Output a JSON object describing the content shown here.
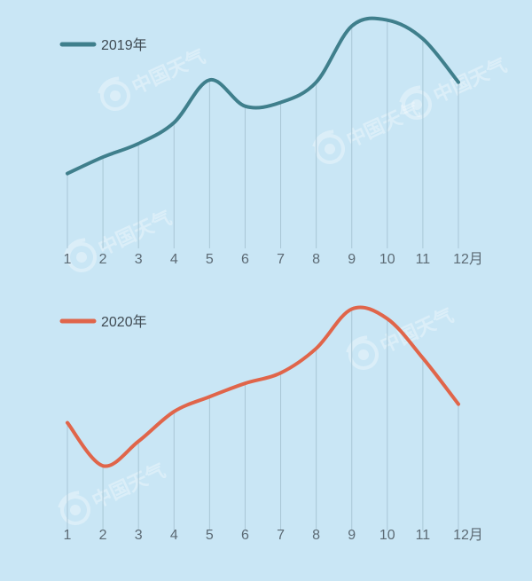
{
  "chart_data": [
    {
      "type": "line",
      "categories": [
        "1",
        "2",
        "3",
        "4",
        "5",
        "6",
        "7",
        "8",
        "9",
        "10",
        "11",
        "12月"
      ],
      "series": [
        {
          "name": "2019年",
          "color": "#3f7f8c",
          "values": [
            100,
            122,
            140,
            168,
            225,
            190,
            195,
            222,
            297,
            305,
            280,
            222
          ]
        }
      ],
      "ylim": [
        0,
        320
      ],
      "grid": "vertical",
      "legend": "top-left"
    },
    {
      "type": "line",
      "categories": [
        "1",
        "2",
        "3",
        "4",
        "5",
        "6",
        "7",
        "8",
        "9",
        "10",
        "11",
        "12月"
      ],
      "series": [
        {
          "name": "2020年",
          "color": "#e0654a",
          "values": [
            145,
            87,
            120,
            160,
            180,
            198,
            212,
            245,
            298,
            285,
            232,
            170
          ]
        }
      ],
      "ylim": [
        0,
        320
      ],
      "grid": "vertical",
      "legend": "top-left"
    }
  ],
  "watermark": {
    "text": "中国天气",
    "icon": "weather-logo-icon"
  }
}
